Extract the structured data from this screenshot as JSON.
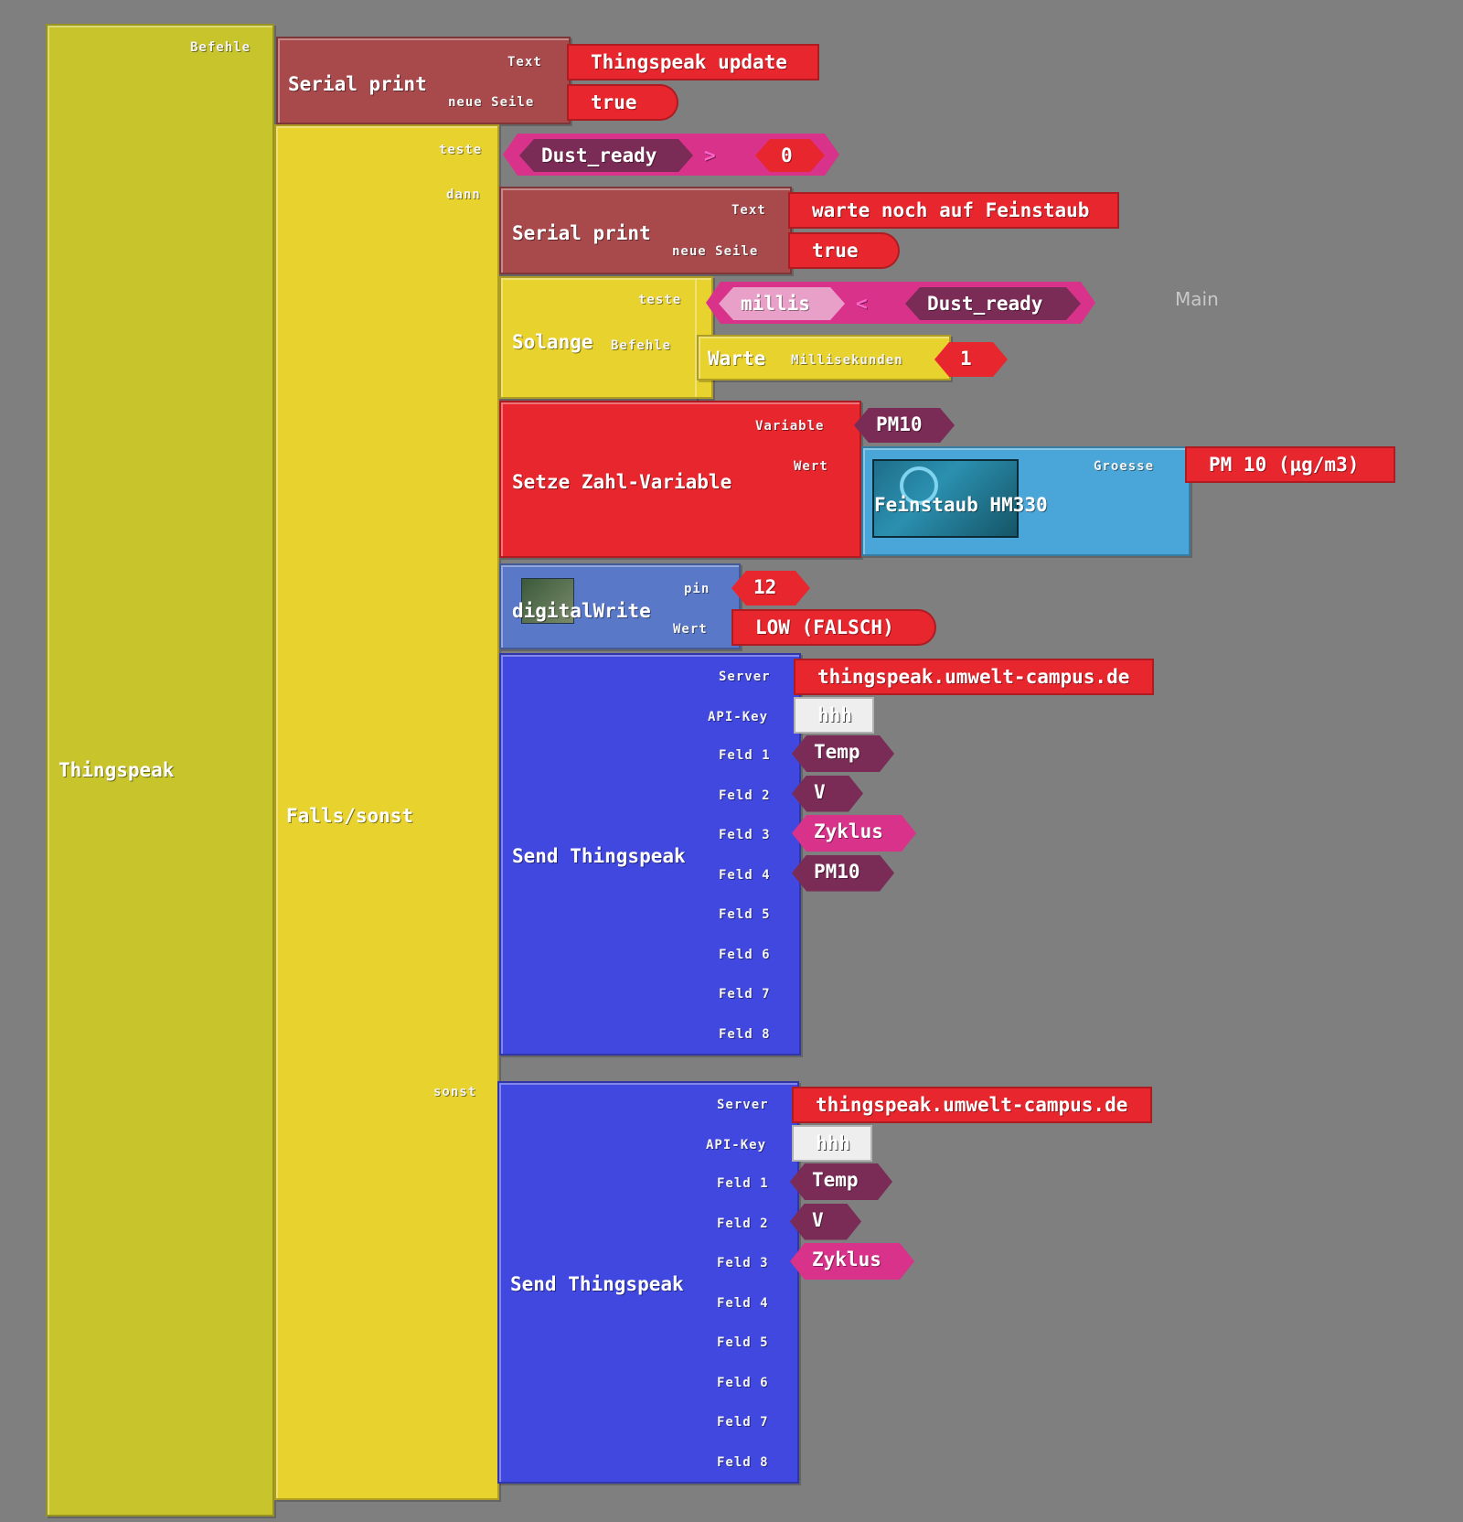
{
  "canvas_label": "Main",
  "thingspeak": {
    "title": "Thingspeak",
    "befehle": "Befehle"
  },
  "serial_print_1": {
    "title": "Serial print",
    "text_label": "Text",
    "newline_label": "neue Seile",
    "text_value": "Thingspeak update",
    "newline_value": "true"
  },
  "ifelse": {
    "title": "Falls/sonst",
    "teste": "teste",
    "dann": "dann",
    "sonst": "sonst",
    "condition": {
      "left": "Dust_ready",
      "op": ">",
      "right": "0"
    }
  },
  "serial_print_2": {
    "title": "Serial print",
    "text_label": "Text",
    "newline_label": "neue Seile",
    "text_value": "warte noch auf Feinstaub",
    "newline_value": "true"
  },
  "while_loop": {
    "title": "Solange",
    "teste": "teste",
    "befehle": "Befehle",
    "condition": {
      "left": "millis",
      "op": "<",
      "right": "Dust_ready"
    },
    "wait": {
      "title": "Warte",
      "ms_label": "Millisekunden",
      "ms_value": "1"
    }
  },
  "set_var": {
    "title": "Setze Zahl-Variable",
    "variable_label": "Variable",
    "variable_value": "PM10",
    "wert_label": "Wert",
    "sensor": {
      "title": "Feinstaub HM330",
      "groesse_label": "Groesse",
      "groesse_value": "PM 10  (µg/m3)"
    }
  },
  "digital_write": {
    "title": "digitalWrite",
    "pin_label": "pin",
    "pin_value": "12",
    "wert_label": "Wert",
    "wert_value": "LOW (FALSCH)"
  },
  "send_1": {
    "title": "Send Thingspeak",
    "server_label": "Server",
    "server_value": "thingspeak.umwelt-campus.de",
    "apikey_label": "API-Key",
    "apikey_value": "hhh",
    "fields": [
      {
        "label": "Feld 1",
        "value": "Temp"
      },
      {
        "label": "Feld 2",
        "value": "V"
      },
      {
        "label": "Feld 3",
        "value": "Zyklus"
      },
      {
        "label": "Feld 4",
        "value": "PM10"
      },
      {
        "label": "Feld 5",
        "value": ""
      },
      {
        "label": "Feld 6",
        "value": ""
      },
      {
        "label": "Feld 7",
        "value": ""
      },
      {
        "label": "Feld 8",
        "value": ""
      }
    ]
  },
  "send_2": {
    "title": "Send Thingspeak",
    "server_label": "Server",
    "server_value": "thingspeak.umwelt-campus.de",
    "apikey_label": "API-Key",
    "apikey_value": "hhh",
    "fields": [
      {
        "label": "Feld 1",
        "value": "Temp"
      },
      {
        "label": "Feld 2",
        "value": "V"
      },
      {
        "label": "Feld 3",
        "value": "Zyklus"
      },
      {
        "label": "Feld 4",
        "value": ""
      },
      {
        "label": "Feld 5",
        "value": ""
      },
      {
        "label": "Feld 6",
        "value": ""
      },
      {
        "label": "Feld 7",
        "value": ""
      },
      {
        "label": "Feld 8",
        "value": ""
      }
    ]
  },
  "colors": {
    "thingspeak": "#c8c42c",
    "ifelse": "#e8d22e",
    "serial": "#a84a4c",
    "setvar": "#e8262d",
    "sensor": "#4aa6d8",
    "digital": "#5a78c8",
    "send": "#4048e0"
  }
}
